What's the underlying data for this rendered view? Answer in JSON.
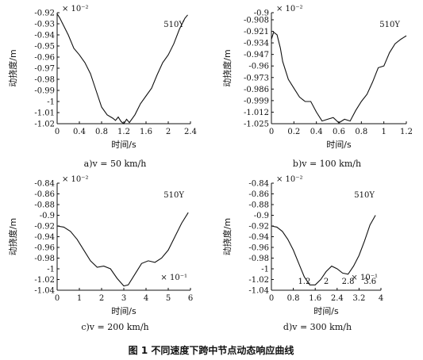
{
  "figure_caption": "图 1    不同速度下跨中节点动态响应曲线",
  "chart_data": [
    {
      "type": "line",
      "caption": "a)v = 50 km/h",
      "ylabel": "动挠度/m",
      "xlabel": "时间/s",
      "y_multiplier": "× 10⁻²",
      "x_multiplier": "",
      "series_label": "510Y",
      "xlim": [
        0,
        2.4
      ],
      "ylim": [
        -1.02,
        -0.92
      ],
      "xticks": [
        "0",
        "0.4",
        "0.8",
        "1.2",
        "1.6",
        "2",
        "2.4"
      ],
      "xtick_values": [
        0,
        0.4,
        0.8,
        1.2,
        1.6,
        2.0,
        2.4
      ],
      "yticks": [
        "-0.92",
        "-0.93",
        "-0.94",
        "-0.95",
        "-0.96",
        "-0.97",
        "-0.98",
        "-0.99",
        "-1",
        "-1.01",
        "-1.02"
      ],
      "ytick_values": [
        -0.92,
        -0.93,
        -0.94,
        -0.95,
        -0.96,
        -0.97,
        -0.98,
        -0.99,
        -1.0,
        -1.01,
        -1.02
      ],
      "x": [
        0,
        0.05,
        0.1,
        0.15,
        0.2,
        0.3,
        0.4,
        0.5,
        0.6,
        0.7,
        0.8,
        0.9,
        1.0,
        1.05,
        1.1,
        1.15,
        1.2,
        1.25,
        1.3,
        1.4,
        1.5,
        1.6,
        1.7,
        1.8,
        1.9,
        2.0,
        2.1,
        2.2,
        2.3,
        2.35
      ],
      "values": [
        -0.921,
        -0.925,
        -0.93,
        -0.935,
        -0.94,
        -0.952,
        -0.958,
        -0.965,
        -0.975,
        -0.99,
        -1.005,
        -1.012,
        -1.015,
        -1.017,
        -1.014,
        -1.018,
        -1.02,
        -1.016,
        -1.019,
        -1.012,
        -1.002,
        -0.995,
        -0.988,
        -0.976,
        -0.965,
        -0.958,
        -0.948,
        -0.935,
        -0.925,
        -0.922
      ]
    },
    {
      "type": "line",
      "caption": "b)v = 100 km/h",
      "ylabel": "动挠度/m",
      "xlabel": "时间/s",
      "y_multiplier": "× 10⁻²",
      "x_multiplier": "",
      "series_label": "510Y",
      "xlim": [
        0,
        1.2
      ],
      "ylim": [
        -1.025,
        -0.9
      ],
      "xticks": [
        "0",
        "0.2",
        "0.4",
        "0.6",
        "0.8",
        "1",
        "1.2"
      ],
      "xtick_values": [
        0,
        0.2,
        0.4,
        0.6,
        0.8,
        1.0,
        1.2
      ],
      "yticks": [
        "-0.9",
        "-0.908",
        "-0.921",
        "-0.934",
        "-0.947",
        "-0.96",
        "-0.973",
        "-0.986",
        "-0.999",
        "-1.012",
        "-1.025"
      ],
      "ytick_values": [
        -0.9,
        -0.908,
        -0.921,
        -0.934,
        -0.947,
        -0.96,
        -0.973,
        -0.986,
        -0.999,
        -1.012,
        -1.025
      ],
      "x": [
        0,
        0.02,
        0.05,
        0.08,
        0.1,
        0.15,
        0.2,
        0.25,
        0.3,
        0.35,
        0.4,
        0.45,
        0.5,
        0.55,
        0.6,
        0.65,
        0.7,
        0.75,
        0.8,
        0.85,
        0.9,
        0.95,
        1.0,
        1.05,
        1.1,
        1.15,
        1.2
      ],
      "values": [
        -0.93,
        -0.922,
        -0.925,
        -0.94,
        -0.955,
        -0.975,
        -0.985,
        -0.995,
        -1.0,
        -1.0,
        -1.012,
        -1.022,
        -1.02,
        -1.018,
        -1.024,
        -1.02,
        -1.022,
        -1.01,
        -1.0,
        -0.992,
        -0.978,
        -0.962,
        -0.96,
        -0.945,
        -0.935,
        -0.93,
        -0.926
      ]
    },
    {
      "type": "line",
      "caption": "c)v = 200 km/h",
      "ylabel": "动挠度/m",
      "xlabel": "时间/s",
      "y_multiplier": "× 10⁻²",
      "x_multiplier": "× 10⁻¹",
      "series_label": "510Y",
      "xlim": [
        0,
        6
      ],
      "ylim": [
        -1.04,
        -0.84
      ],
      "xticks": [
        "0",
        "1",
        "2",
        "3",
        "4",
        "5",
        "6"
      ],
      "xtick_values": [
        0,
        1,
        2,
        3,
        4,
        5,
        6
      ],
      "yticks": [
        "-0.84",
        "-0.86",
        "-0.88",
        "-0.9",
        "-0.92",
        "-0.94",
        "-0.96",
        "-0.98",
        "-1",
        "-1.02",
        "-1.04"
      ],
      "ytick_values": [
        -0.84,
        -0.86,
        -0.88,
        -0.9,
        -0.92,
        -0.94,
        -0.96,
        -0.98,
        -1.0,
        -1.02,
        -1.04
      ],
      "x": [
        0,
        0.3,
        0.6,
        0.9,
        1.2,
        1.5,
        1.8,
        2.1,
        2.4,
        2.7,
        3.0,
        3.2,
        3.5,
        3.8,
        4.1,
        4.4,
        4.7,
        5.0,
        5.3,
        5.6,
        5.9
      ],
      "values": [
        -0.92,
        -0.922,
        -0.93,
        -0.945,
        -0.965,
        -0.985,
        -0.997,
        -0.995,
        -1.0,
        -1.018,
        -1.032,
        -1.03,
        -1.01,
        -0.99,
        -0.985,
        -0.988,
        -0.98,
        -0.965,
        -0.94,
        -0.915,
        -0.895
      ]
    },
    {
      "type": "line",
      "caption": "d)v = 300 km/h",
      "ylabel": "动挠度/m",
      "xlabel": "时间/s",
      "y_multiplier": "× 10⁻²",
      "x_multiplier": "× 10⁻¹",
      "series_label": "510Y",
      "xlim": [
        0,
        4
      ],
      "ylim": [
        -1.04,
        -0.84
      ],
      "xticks": [
        "0",
        "0.8",
        "1.6",
        "2.4",
        "3.2",
        "4"
      ],
      "xtick_values": [
        0,
        0.8,
        1.6,
        2.4,
        3.2,
        4.0
      ],
      "extra_xticks": [
        "1.2",
        "2",
        "2.8",
        "3.6"
      ],
      "extra_xtick_values": [
        1.2,
        2.0,
        2.8,
        3.6
      ],
      "yticks": [
        "-0.84",
        "-0.86",
        "-0.88",
        "-0.9",
        "-0.92",
        "-0.94",
        "-0.96",
        "-0.98",
        "-1",
        "-1.02",
        "-1.04"
      ],
      "ytick_values": [
        -0.84,
        -0.86,
        -0.88,
        -0.9,
        -0.92,
        -0.94,
        -0.96,
        -0.98,
        -1.0,
        -1.02,
        -1.04
      ],
      "x": [
        0,
        0.2,
        0.4,
        0.6,
        0.8,
        1.0,
        1.2,
        1.4,
        1.6,
        1.8,
        2.0,
        2.2,
        2.4,
        2.6,
        2.8,
        3.0,
        3.2,
        3.4,
        3.6,
        3.8
      ],
      "values": [
        -0.92,
        -0.922,
        -0.93,
        -0.945,
        -0.965,
        -0.99,
        -1.015,
        -1.03,
        -1.03,
        -1.02,
        -1.005,
        -0.995,
        -1.0,
        -1.008,
        -1.01,
        -0.995,
        -0.975,
        -0.948,
        -0.918,
        -0.9
      ]
    }
  ]
}
